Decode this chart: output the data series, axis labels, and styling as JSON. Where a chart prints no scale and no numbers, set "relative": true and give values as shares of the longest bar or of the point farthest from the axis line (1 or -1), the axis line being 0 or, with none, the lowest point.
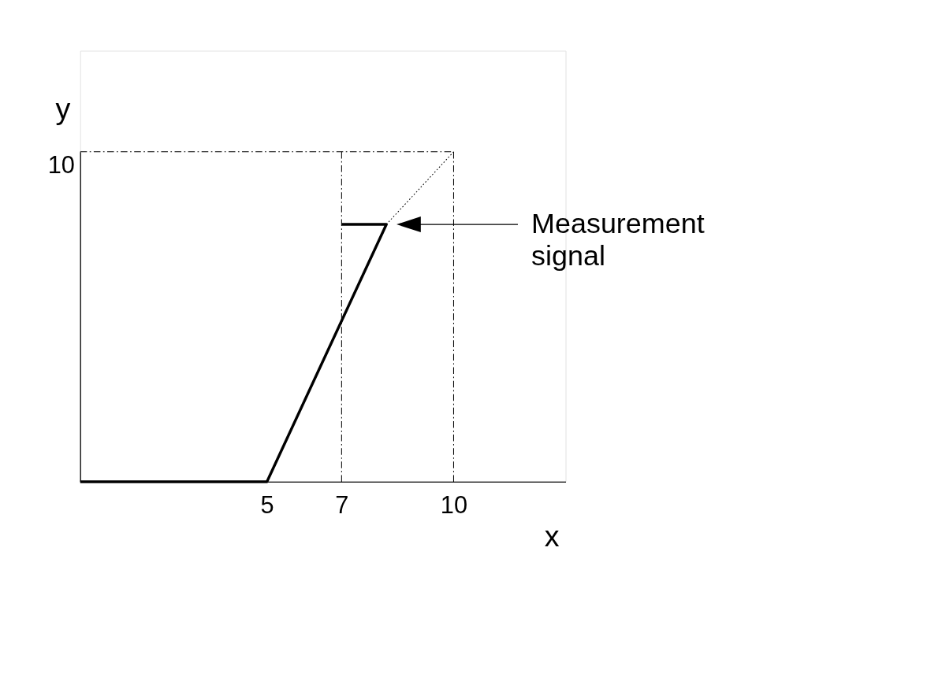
{
  "chart_data": {
    "type": "line",
    "xlabel": "x",
    "ylabel": "y",
    "xlim": [
      0,
      13
    ],
    "xticks": [
      5,
      7,
      10
    ],
    "relative": true,
    "grid": false,
    "legend": false,
    "marker": "none",
    "series": [
      {
        "color": "#000000",
        "line_style": "solid",
        "x": [
          0,
          5,
          8.2,
          7
        ],
        "values": [
          0,
          0,
          0.78,
          0.78
        ]
      },
      {
        "color": "#000000",
        "line_style": "dotted",
        "x": [
          8.2,
          10
        ],
        "values": [
          0.78,
          1
        ]
      },
      {
        "color": "#000000",
        "line_style": "dashed",
        "x": [
          0,
          10
        ],
        "values": [
          1,
          1
        ]
      },
      {
        "color": "#000000",
        "line_style": "dashed",
        "x": [
          7,
          7
        ],
        "values": [
          0,
          1
        ]
      },
      {
        "color": "#000000",
        "line_style": "dashed",
        "x": [
          10,
          10
        ],
        "values": [
          0,
          1
        ]
      }
    ],
    "annotations": [
      "10",
      "Measurement signal"
    ]
  }
}
